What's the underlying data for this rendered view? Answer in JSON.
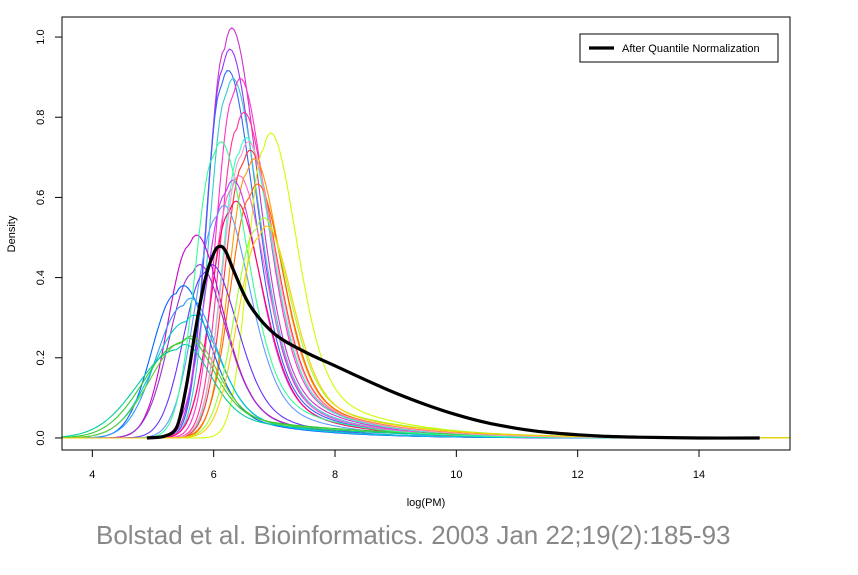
{
  "chart_data": {
    "type": "line",
    "title": "",
    "xlabel": "log(PM)",
    "ylabel": "Density",
    "xlim": [
      3.5,
      15.5
    ],
    "ylim": [
      -0.03,
      1.05
    ],
    "xticks": [
      "4",
      "6",
      "8",
      "10",
      "12",
      "14"
    ],
    "xtick_values": [
      4,
      6,
      8,
      10,
      12,
      14
    ],
    "yticks": [
      "0.0",
      "0.2",
      "0.4",
      "0.6",
      "0.8",
      "1.0"
    ],
    "ytick_values": [
      0,
      0.2,
      0.4,
      0.6,
      0.8,
      1.0
    ],
    "grid": false,
    "legend": {
      "position": "top-right",
      "entries": [
        "After Quantile Normalization"
      ]
    },
    "normalized": {
      "name": "After Quantile Normalization",
      "color": "#000000",
      "x": [
        4.9,
        5.2,
        5.4,
        5.55,
        5.7,
        5.85,
        6.0,
        6.1,
        6.2,
        6.35,
        6.6,
        7.0,
        7.5,
        8.0,
        8.5,
        9.0,
        9.5,
        10.0,
        10.5,
        11.0,
        11.5,
        12.0,
        12.5,
        13.0,
        14.0,
        15.0
      ],
      "y": [
        0.0,
        0.005,
        0.03,
        0.13,
        0.27,
        0.39,
        0.46,
        0.478,
        0.465,
        0.41,
        0.33,
        0.26,
        0.215,
        0.18,
        0.145,
        0.112,
        0.083,
        0.058,
        0.038,
        0.024,
        0.014,
        0.008,
        0.004,
        0.002,
        0.0,
        0.0
      ]
    },
    "series": [
      {
        "color": "#cc33cc",
        "peak_x": 6.18,
        "peak_y": 0.97,
        "rise": 0.28,
        "tail": 1.05
      },
      {
        "color": "#9933ff",
        "peak_x": 6.15,
        "peak_y": 0.92,
        "rise": 0.26,
        "tail": 1.0
      },
      {
        "color": "#3366ff",
        "peak_x": 6.12,
        "peak_y": 0.87,
        "rise": 0.25,
        "tail": 1.0
      },
      {
        "color": "#33cccc",
        "peak_x": 6.2,
        "peak_y": 0.85,
        "rise": 0.27,
        "tail": 1.05
      },
      {
        "color": "#ff33cc",
        "peak_x": 6.32,
        "peak_y": 0.85,
        "rise": 0.28,
        "tail": 1.1
      },
      {
        "color": "#ff3399",
        "peak_x": 6.38,
        "peak_y": 0.77,
        "rise": 0.28,
        "tail": 1.15
      },
      {
        "color": "#33ffcc",
        "peak_x": 6.42,
        "peak_y": 0.71,
        "rise": 0.28,
        "tail": 1.15
      },
      {
        "color": "#ff3333",
        "peak_x": 6.48,
        "peak_y": 0.68,
        "rise": 0.3,
        "tail": 1.2
      },
      {
        "color": "#ff9900",
        "peak_x": 6.55,
        "peak_y": 0.66,
        "rise": 0.3,
        "tail": 1.2
      },
      {
        "color": "#ccff00",
        "peak_x": 6.82,
        "peak_y": 0.72,
        "rise": 0.26,
        "tail": 1.25
      },
      {
        "color": "#cc33ff",
        "peak_x": 6.2,
        "peak_y": 0.61,
        "rise": 0.33,
        "tail": 1.1
      },
      {
        "color": "#ff66cc",
        "peak_x": 6.3,
        "peak_y": 0.62,
        "rise": 0.32,
        "tail": 1.15
      },
      {
        "color": "#6699ff",
        "peak_x": 6.05,
        "peak_y": 0.55,
        "rise": 0.35,
        "tail": 1.1
      },
      {
        "color": "#ff0066",
        "peak_x": 6.25,
        "peak_y": 0.56,
        "rise": 0.3,
        "tail": 1.1
      },
      {
        "color": "#ff6600",
        "peak_x": 6.6,
        "peak_y": 0.6,
        "rise": 0.33,
        "tail": 1.25
      },
      {
        "color": "#cc00cc",
        "peak_x": 5.6,
        "peak_y": 0.48,
        "rise": 0.35,
        "tail": 1.05
      },
      {
        "color": "#9933cc",
        "peak_x": 5.65,
        "peak_y": 0.41,
        "rise": 0.38,
        "tail": 1.1
      },
      {
        "color": "#6633ff",
        "peak_x": 5.85,
        "peak_y": 0.41,
        "rise": 0.35,
        "tail": 1.1
      },
      {
        "color": "#0066ff",
        "peak_x": 5.38,
        "peak_y": 0.36,
        "rise": 0.4,
        "tail": 1.2
      },
      {
        "color": "#3399ff",
        "peak_x": 5.5,
        "peak_y": 0.33,
        "rise": 0.45,
        "tail": 1.25
      },
      {
        "color": "#00cccc",
        "peak_x": 5.55,
        "peak_y": 0.29,
        "rise": 0.55,
        "tail": 1.35
      },
      {
        "color": "#66cc33",
        "peak_x": 5.5,
        "peak_y": 0.24,
        "rise": 0.55,
        "tail": 1.9
      },
      {
        "color": "#33cc33",
        "peak_x": 5.45,
        "peak_y": 0.235,
        "rise": 0.6,
        "tail": 2.2
      },
      {
        "color": "#00cc99",
        "peak_x": 5.4,
        "peak_y": 0.22,
        "rise": 0.65,
        "tail": 2.0
      },
      {
        "color": "#33ff99",
        "peak_x": 6.0,
        "peak_y": 0.7,
        "rise": 0.3,
        "tail": 1.15
      },
      {
        "color": "#ff99cc",
        "peak_x": 6.45,
        "peak_y": 0.7,
        "rise": 0.3,
        "tail": 1.2
      },
      {
        "color": "#99ff33",
        "peak_x": 6.7,
        "peak_y": 0.52,
        "rise": 0.35,
        "tail": 1.45
      },
      {
        "color": "#ffcc00",
        "peak_x": 6.75,
        "peak_y": 0.5,
        "rise": 0.35,
        "tail": 1.4
      }
    ]
  },
  "citation": "Bolstad et al. Bioinformatics. 2003 Jan 22;19(2):185-93"
}
